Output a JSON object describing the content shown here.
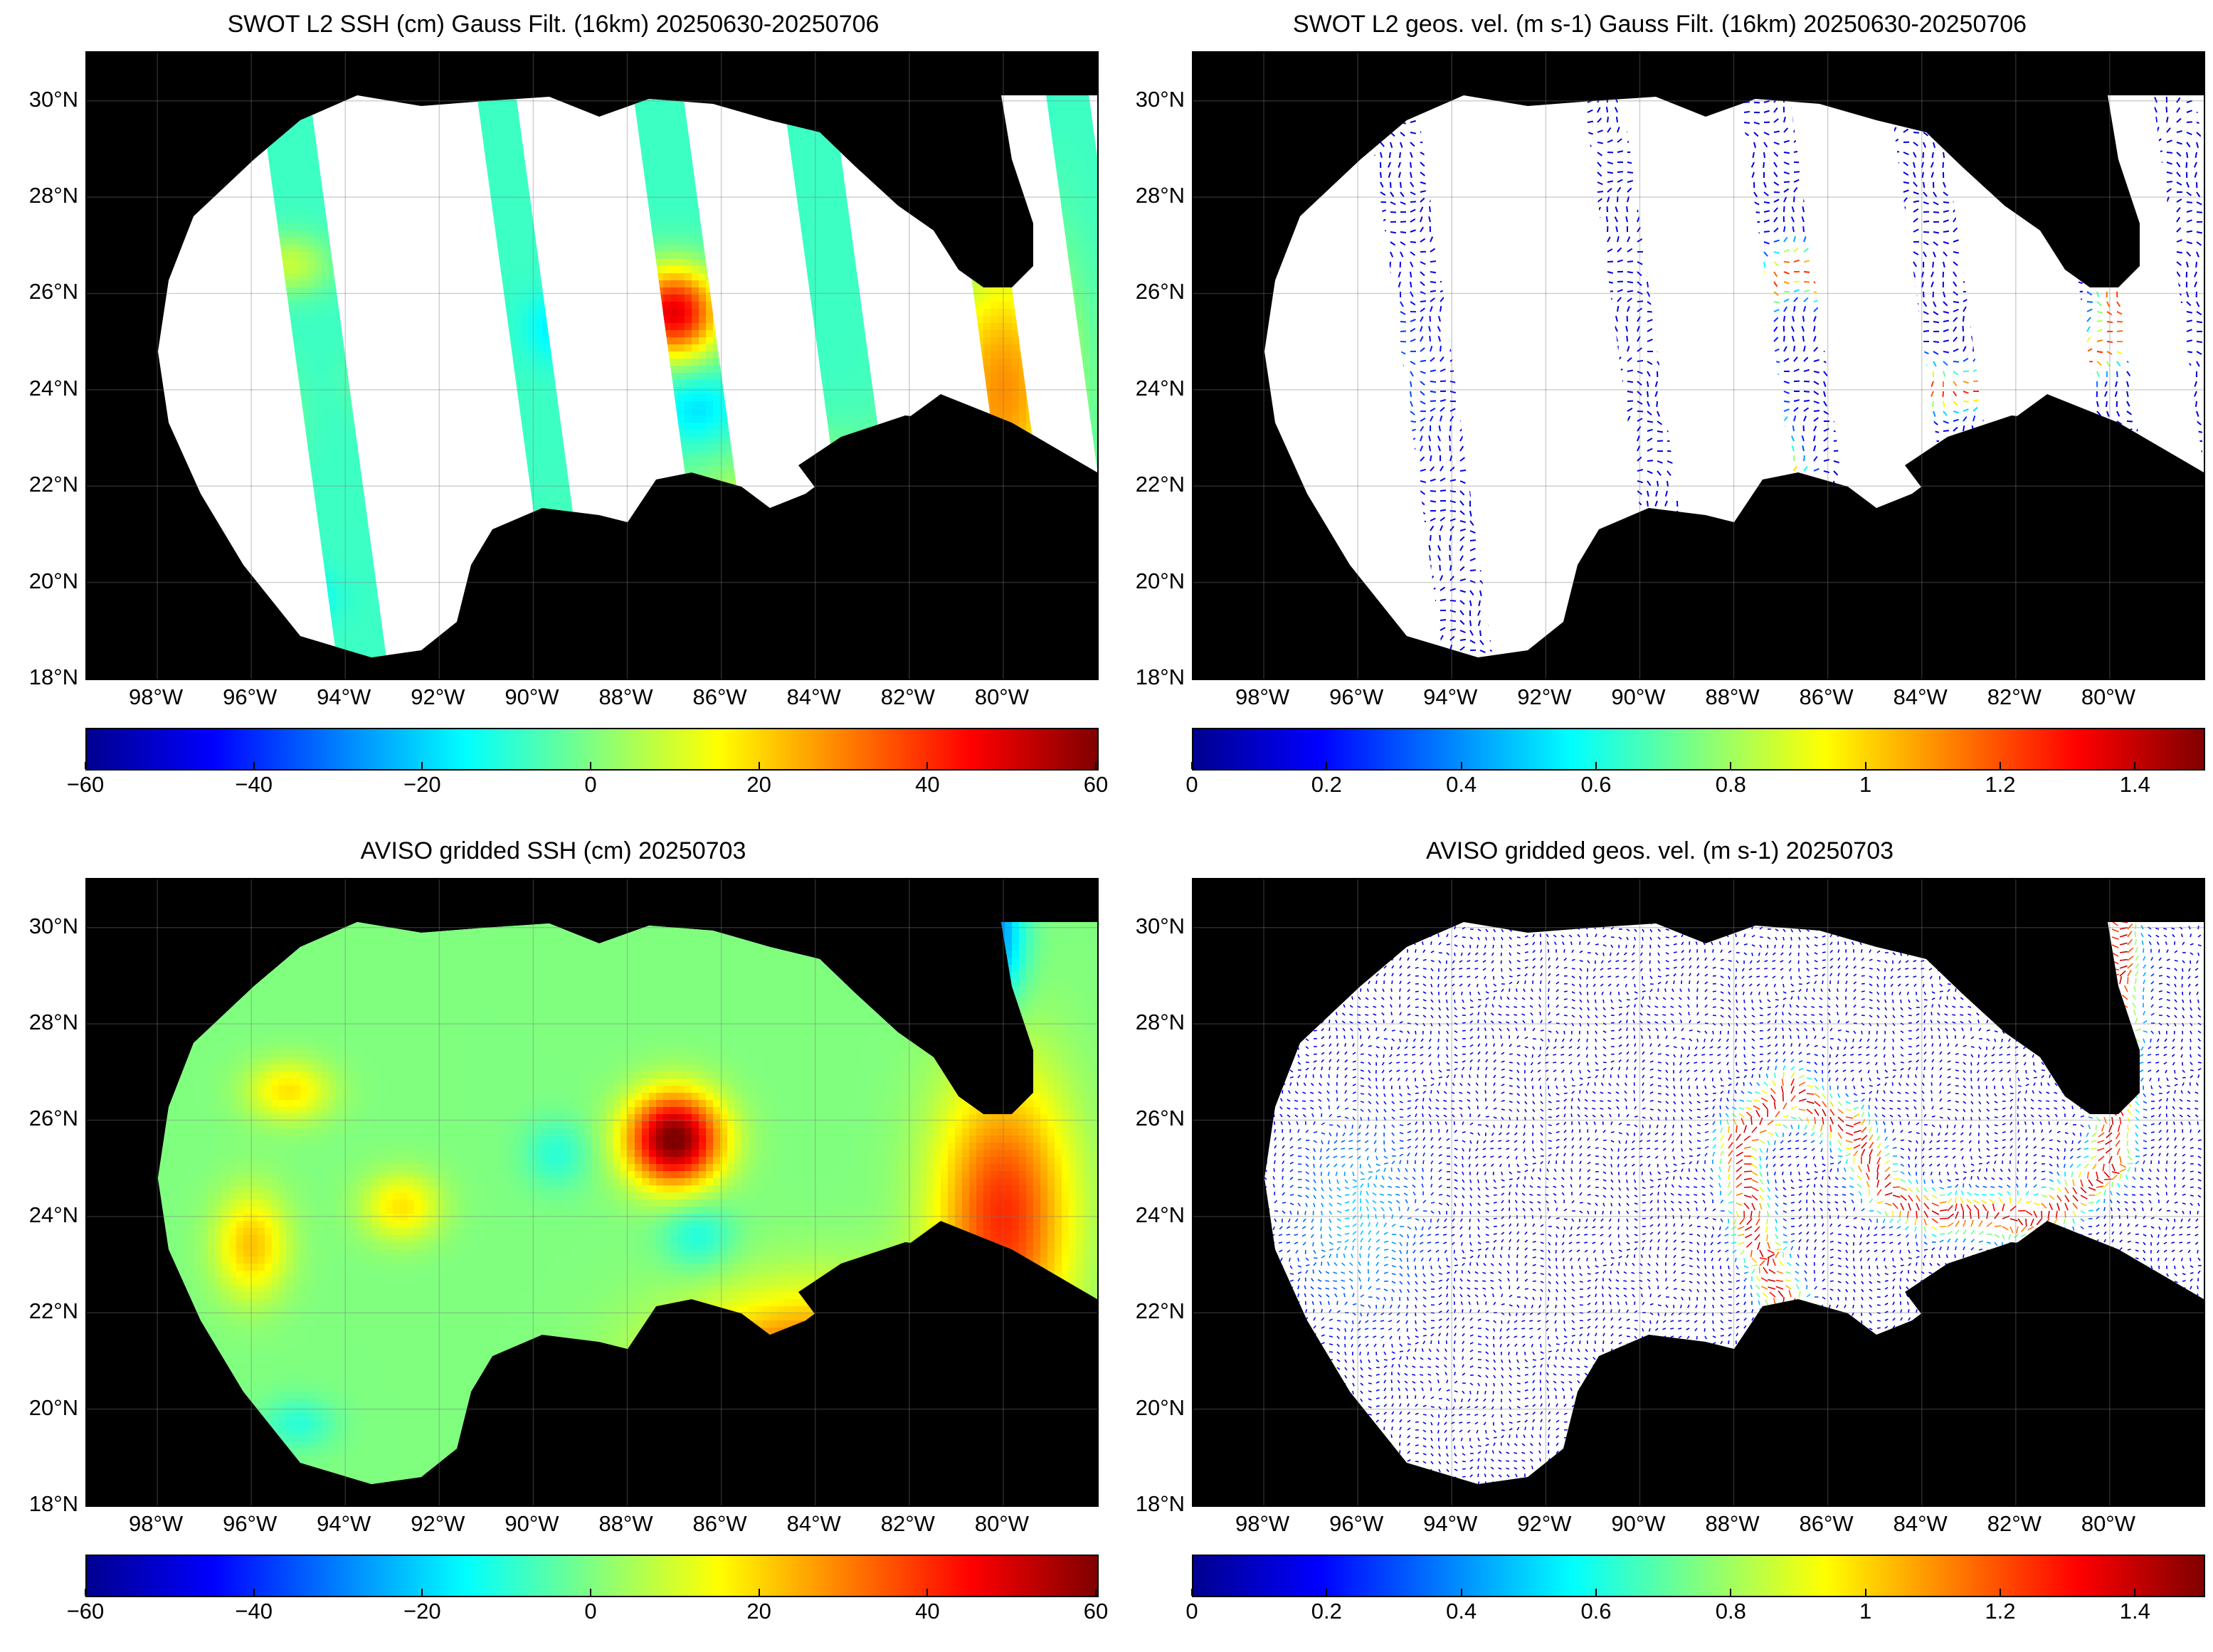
{
  "colors": {
    "land": "#000000",
    "ocean_missing": "#ffffff",
    "jet_scale": [
      "#00008f",
      "#0000ff",
      "#0080ff",
      "#00ffff",
      "#80ff80",
      "#ffff00",
      "#ff8000",
      "#ff0000",
      "#800000"
    ]
  },
  "lat_ticks": [
    "30°N",
    "28°N",
    "26°N",
    "24°N",
    "22°N",
    "20°N",
    "18°N"
  ],
  "lon_ticks": [
    "98°W",
    "96°W",
    "94°W",
    "92°W",
    "90°W",
    "88°W",
    "86°W",
    "84°W",
    "82°W",
    "80°W"
  ],
  "panels": [
    {
      "id": "swot-ssh",
      "title": "SWOT L2 SSH (cm) Gauss Filt. (16km) 20250630-20250706",
      "kind": "ssh-swaths",
      "colorbar": {
        "ticks": [
          "−60",
          "−40",
          "−20",
          "0",
          "20",
          "40",
          "60"
        ],
        "range": [
          -60,
          60
        ]
      }
    },
    {
      "id": "swot-vel",
      "title": "SWOT L2 geos. vel. (m s-1) Gauss Filt. (16km) 20250630-20250706",
      "kind": "vel-swaths",
      "colorbar": {
        "ticks": [
          "0",
          "0.2",
          "0.4",
          "0.6",
          "0.8",
          "1",
          "1.2",
          "1.4"
        ],
        "range": [
          0,
          1.5
        ]
      }
    },
    {
      "id": "aviso-ssh",
      "title": "AVISO gridded SSH (cm) 20250703",
      "kind": "ssh-grid",
      "colorbar": {
        "ticks": [
          "−60",
          "−40",
          "−20",
          "0",
          "20",
          "40",
          "60"
        ],
        "range": [
          -60,
          60
        ]
      }
    },
    {
      "id": "aviso-vel",
      "title": "AVISO gridded geos. vel. (m s-1)  20250703",
      "kind": "vel-grid",
      "colorbar": {
        "ticks": [
          "0",
          "0.2",
          "0.4",
          "0.6",
          "0.8",
          "1",
          "1.2",
          "1.4"
        ],
        "range": [
          0,
          1.5
        ]
      }
    }
  ]
}
